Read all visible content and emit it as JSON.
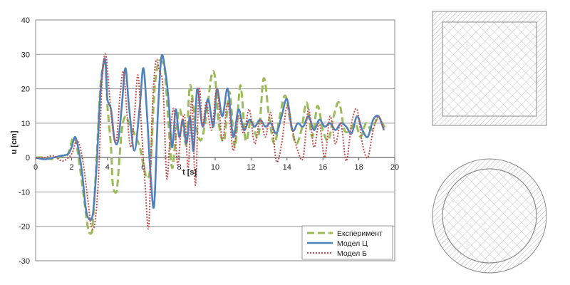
{
  "chart_data": {
    "type": "line",
    "xlabel": "t [s]",
    "ylabel": "u [cm]",
    "xlim": [
      0,
      20
    ],
    "ylim": [
      -30,
      40
    ],
    "x_ticks": [
      "0",
      "2",
      "4",
      "6",
      "8",
      "10",
      "12",
      "14",
      "16",
      "18",
      "20"
    ],
    "y_ticks": [
      "-30",
      "-20",
      "-10",
      "0",
      "10",
      "20",
      "30",
      "40"
    ],
    "grid": "horizontal",
    "legend_position": "bottom-right",
    "series": [
      {
        "name": "Експеримент",
        "color": "#9bbb59",
        "style": "dashed",
        "x": [
          0,
          0.5,
          1.0,
          1.5,
          1.8,
          2.1,
          2.3,
          2.6,
          2.9,
          3.1,
          3.2,
          3.4,
          3.6,
          3.8,
          3.9,
          4.0,
          4.2,
          4.3,
          4.5,
          4.6,
          4.8,
          5.0,
          5.2,
          5.5,
          5.8,
          6.0,
          6.2,
          6.4,
          6.6,
          6.8,
          7.0,
          7.2,
          7.4,
          7.6,
          7.8,
          8.0,
          8.2,
          8.4,
          8.6,
          8.9,
          9.2,
          9.5,
          9.8,
          10.0,
          10.2,
          10.5,
          10.8,
          11.1,
          11.4,
          11.7,
          12.0,
          12.4,
          12.7,
          13.0,
          13.3,
          13.6,
          13.9,
          14.2,
          14.5,
          14.8,
          15.1,
          15.4,
          15.7,
          16.0,
          16.3,
          16.6,
          16.9,
          17.2,
          17.5,
          17.8,
          18.1,
          18.4,
          18.7,
          19.0,
          19.3,
          19.5
        ],
        "y": [
          0,
          0,
          -0.5,
          0.5,
          1,
          6,
          3,
          -8,
          -20,
          -22,
          -18,
          0,
          20,
          28,
          27,
          15,
          3,
          -8,
          -10,
          -5,
          8,
          12,
          10,
          7,
          3,
          -2,
          -6,
          -2,
          18,
          27,
          28,
          25,
          10,
          -3,
          6,
          14,
          10,
          4,
          21,
          10,
          5,
          12,
          24,
          23,
          10,
          5,
          19,
          3,
          21,
          5,
          11,
          6,
          23,
          12,
          4,
          12,
          18,
          10,
          4,
          8,
          16,
          6,
          15,
          8,
          5,
          12,
          16,
          8,
          8,
          10,
          6,
          10,
          8,
          11,
          10,
          8
        ]
      },
      {
        "name": "Модел Ц",
        "color": "#4f81bd",
        "style": "solid",
        "x": [
          0,
          0.5,
          1.0,
          1.4,
          1.8,
          2.0,
          2.2,
          2.4,
          2.6,
          2.8,
          3.0,
          3.2,
          3.4,
          3.6,
          3.8,
          3.9,
          4.0,
          4.2,
          4.4,
          4.6,
          4.8,
          5.0,
          5.2,
          5.5,
          5.8,
          6.0,
          6.2,
          6.4,
          6.6,
          6.8,
          7.0,
          7.2,
          7.4,
          7.6,
          7.8,
          8.0,
          8.2,
          8.4,
          8.6,
          8.8,
          9.0,
          9.3,
          9.6,
          9.9,
          10.1,
          10.4,
          10.7,
          11.0,
          11.3,
          11.6,
          11.9,
          12.2,
          12.5,
          12.8,
          13.1,
          13.4,
          13.7,
          14.0,
          14.3,
          14.6,
          14.9,
          15.2,
          15.5,
          15.8,
          16.1,
          16.4,
          16.7,
          17.0,
          17.3,
          17.6,
          17.9,
          18.2,
          18.5,
          18.8,
          19.1,
          19.4
        ],
        "y": [
          0,
          -0.5,
          0,
          0.5,
          1,
          3,
          6,
          2,
          -5,
          -15,
          -18,
          -16,
          -2,
          18,
          28,
          27,
          17,
          14,
          5,
          5,
          15,
          26,
          15,
          2,
          15,
          26,
          13,
          -5,
          -14,
          12,
          29,
          26,
          17,
          3,
          14,
          6,
          11,
          4,
          12,
          2,
          20,
          9,
          17,
          9,
          20,
          12,
          20,
          6,
          14,
          8,
          11,
          9,
          11,
          9,
          10,
          7,
          12,
          17,
          8,
          10,
          9,
          12,
          8,
          11,
          9,
          10,
          8,
          10,
          9,
          7,
          12,
          8,
          6,
          11,
          12,
          8
        ]
      },
      {
        "name": "Модел Б",
        "color": "#c0504d",
        "style": "dotted",
        "x": [
          0,
          0.5,
          1.0,
          1.5,
          2.0,
          2.3,
          2.6,
          2.9,
          3.1,
          3.3,
          3.5,
          3.7,
          3.9,
          4.1,
          4.3,
          4.5,
          4.7,
          4.9,
          5.1,
          5.3,
          5.5,
          5.7,
          5.9,
          6.1,
          6.3,
          6.5,
          6.7,
          6.9,
          7.1,
          7.3,
          7.5,
          7.7,
          7.9,
          8.1,
          8.3,
          8.5,
          8.7,
          8.9,
          9.1,
          9.3,
          9.5,
          9.8,
          10.1,
          10.4,
          10.7,
          11.0,
          11.3,
          11.6,
          11.9,
          12.2,
          12.5,
          12.8,
          13.1,
          13.4,
          13.7,
          14.0,
          14.3,
          14.6,
          14.9,
          15.2,
          15.5,
          15.8,
          16.1,
          16.4,
          16.7,
          17.0,
          17.3,
          17.6,
          17.9,
          18.2,
          18.5,
          18.8,
          19.1,
          19.4
        ],
        "y": [
          0,
          0,
          0.5,
          -1,
          1,
          5,
          0,
          -12,
          -20,
          -19,
          -6,
          22,
          30,
          19,
          8,
          5,
          18,
          25,
          12,
          3,
          12,
          24,
          8,
          -8,
          -20,
          14,
          28,
          25,
          20,
          -6,
          7,
          14,
          -2,
          8,
          12,
          -3,
          17,
          -8,
          20,
          9,
          16,
          8,
          20,
          5,
          16,
          2,
          12,
          7,
          14,
          4,
          11,
          6,
          13,
          -1,
          4,
          15,
          8,
          2,
          0,
          14,
          3,
          10,
          0,
          12,
          4,
          10,
          -1,
          10,
          14,
          4,
          0,
          8,
          12,
          8
        ]
      }
    ]
  },
  "figures": {
    "square_section": "square-hollow-section",
    "circle_section": "circular-hollow-section"
  }
}
